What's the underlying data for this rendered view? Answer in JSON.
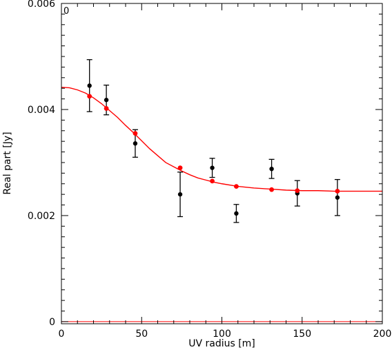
{
  "chart_data": {
    "type": "scatter",
    "panel_label": "0",
    "xlabel": "UV radius [m]",
    "ylabel": "Real part [Jy]",
    "xlim": [
      0,
      200
    ],
    "ylim": [
      -4e-05,
      0.006
    ],
    "x_ticks": [
      0,
      50,
      100,
      150,
      200
    ],
    "x_tick_labels": [
      "0",
      "50",
      "100",
      "150",
      "200"
    ],
    "y_ticks": [
      0,
      0.002,
      0.004,
      0.006
    ],
    "y_tick_labels": [
      "0",
      "0.002",
      "0.004",
      "0.006"
    ],
    "grid": false,
    "observed": {
      "color": "#000000",
      "points": [
        {
          "x": 17.5,
          "y": 0.00445,
          "err_lo": 0.00396,
          "err_hi": 0.00494
        },
        {
          "x": 28.0,
          "y": 0.00418,
          "err_lo": 0.0039,
          "err_hi": 0.00446
        },
        {
          "x": 46.0,
          "y": 0.00336,
          "err_lo": 0.0031,
          "err_hi": 0.00362
        },
        {
          "x": 74.0,
          "y": 0.0024,
          "err_lo": 0.00198,
          "err_hi": 0.00282
        },
        {
          "x": 94.0,
          "y": 0.0029,
          "err_lo": 0.00272,
          "err_hi": 0.00308
        },
        {
          "x": 109.0,
          "y": 0.00204,
          "err_lo": 0.00187,
          "err_hi": 0.00221
        },
        {
          "x": 131.0,
          "y": 0.00288,
          "err_lo": 0.0027,
          "err_hi": 0.00306
        },
        {
          "x": 147.0,
          "y": 0.00242,
          "err_lo": 0.00218,
          "err_hi": 0.00266
        },
        {
          "x": 172.0,
          "y": 0.00234,
          "err_lo": 0.002,
          "err_hi": 0.00268
        }
      ]
    },
    "model_points": {
      "color": "#ff0000",
      "points": [
        {
          "x": 17.5,
          "y": 0.00425
        },
        {
          "x": 28.0,
          "y": 0.00402
        },
        {
          "x": 46.0,
          "y": 0.00355
        },
        {
          "x": 74.0,
          "y": 0.0029
        },
        {
          "x": 94.0,
          "y": 0.00265
        },
        {
          "x": 109.0,
          "y": 0.00255
        },
        {
          "x": 131.0,
          "y": 0.00249
        },
        {
          "x": 147.0,
          "y": 0.00247
        },
        {
          "x": 172.0,
          "y": 0.00246
        }
      ]
    },
    "model_curve": {
      "color": "#ff0000",
      "x": [
        0,
        5,
        10,
        15,
        20,
        25,
        30,
        35,
        40,
        45,
        50,
        55,
        60,
        65,
        70,
        75,
        80,
        85,
        90,
        95,
        100,
        110,
        120,
        130,
        140,
        150,
        160,
        170,
        180,
        190,
        200
      ],
      "y": [
        0.00442,
        0.00441,
        0.00437,
        0.00431,
        0.00422,
        0.00411,
        0.00398,
        0.00385,
        0.0037,
        0.00356,
        0.00341,
        0.00326,
        0.00313,
        0.003,
        0.00292,
        0.00284,
        0.00277,
        0.00271,
        0.00267,
        0.00263,
        0.0026,
        0.00255,
        0.00252,
        0.0025,
        0.00248,
        0.00247,
        0.00247,
        0.00246,
        0.00246,
        0.00246,
        0.00246
      ]
    },
    "zero_line": {
      "y": 0,
      "color": "#ff0000"
    }
  }
}
